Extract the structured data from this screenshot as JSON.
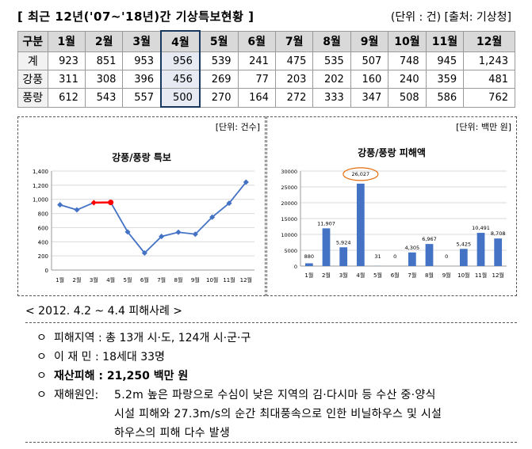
{
  "header": {
    "title": "[ 최근 12년('07~'18년)간 기상특보현황 ]",
    "unit_source": "(단위 : 건) [출처: 기상청]"
  },
  "table": {
    "corner": "구분",
    "months": [
      "1월",
      "2월",
      "3월",
      "4월",
      "5월",
      "6월",
      "7월",
      "8월",
      "9월",
      "10월",
      "11월",
      "12월"
    ],
    "rows": [
      {
        "label": "계",
        "values": [
          "923",
          "851",
          "953",
          "956",
          "539",
          "241",
          "475",
          "535",
          "507",
          "748",
          "945",
          "1,243"
        ]
      },
      {
        "label": "강풍",
        "values": [
          "311",
          "308",
          "396",
          "456",
          "269",
          "77",
          "203",
          "202",
          "160",
          "240",
          "359",
          "481"
        ]
      },
      {
        "label": "풍랑",
        "values": [
          "612",
          "543",
          "557",
          "500",
          "270",
          "164",
          "272",
          "333",
          "347",
          "508",
          "586",
          "762"
        ]
      }
    ]
  },
  "chart_data": [
    {
      "type": "line",
      "unit_label": "[단위: 건수]",
      "title": "강풍/풍랑 특보",
      "categories": [
        "1월",
        "2월",
        "3월",
        "4월",
        "5월",
        "6월",
        "7월",
        "8월",
        "9월",
        "10월",
        "11월",
        "12월"
      ],
      "values": [
        923,
        851,
        953,
        956,
        539,
        241,
        475,
        535,
        507,
        748,
        945,
        1243
      ],
      "ylim": [
        0,
        1400
      ],
      "yticks": [
        0,
        200,
        400,
        600,
        800,
        1000,
        1200,
        1400
      ],
      "ytick_labels": [
        "0",
        "200",
        "400",
        "600",
        "800",
        "1,000",
        "1,200",
        "1,400"
      ],
      "highlight": {
        "from": 2,
        "to": 3,
        "color": "#ff0000"
      },
      "color": "#4472c4",
      "grid": true
    },
    {
      "type": "bar",
      "unit_label": "[단위: 백만 원]",
      "title": "강풍/풍랑 피해액",
      "categories": [
        "1월",
        "2월",
        "3월",
        "4월",
        "5월",
        "6월",
        "7월",
        "8월",
        "9월",
        "10월",
        "11월",
        "12월"
      ],
      "values": [
        880,
        11907,
        5924,
        26027,
        31,
        0,
        4305,
        6967,
        0,
        5425,
        10491,
        8708
      ],
      "value_labels": [
        "880",
        "11,907",
        "5,924",
        "26,027",
        "31",
        "0",
        "4,305",
        "6,967",
        "0",
        "5,425",
        "10,491",
        "8,708"
      ],
      "ylim": [
        0,
        30000
      ],
      "yticks": [
        0,
        5000,
        10000,
        15000,
        20000,
        25000,
        30000
      ],
      "ytick_labels": [
        "0",
        "5000",
        "10000",
        "15000",
        "20000",
        "25000",
        "30000"
      ],
      "highlight_index": 3,
      "color": "#4472c4",
      "grid": true
    }
  ],
  "cases": {
    "header": "< 2012. 4.2 ~ 4.4 피해사례 >",
    "bullet": "ㅇ",
    "items": [
      {
        "label": "피해지역 :",
        "value": "총 13개 시·도, 124개 시·군·구"
      },
      {
        "label": "이 재 민 :",
        "value": "18세대 33명"
      },
      {
        "label": "재산피해 :",
        "value": "21,250 백만 원"
      },
      {
        "label": "재해원인:",
        "value": ""
      }
    ],
    "cause_lines": [
      "5.2m 높은 파랑으로 수심이 낮은 지역의 김·다시마 등 수산 중·양식",
      "시설 피해와 27.3m/s의 순간 최대풍속으로 인한 비닐하우스 및 시설",
      "하우스의 피해 다수 발생"
    ]
  }
}
